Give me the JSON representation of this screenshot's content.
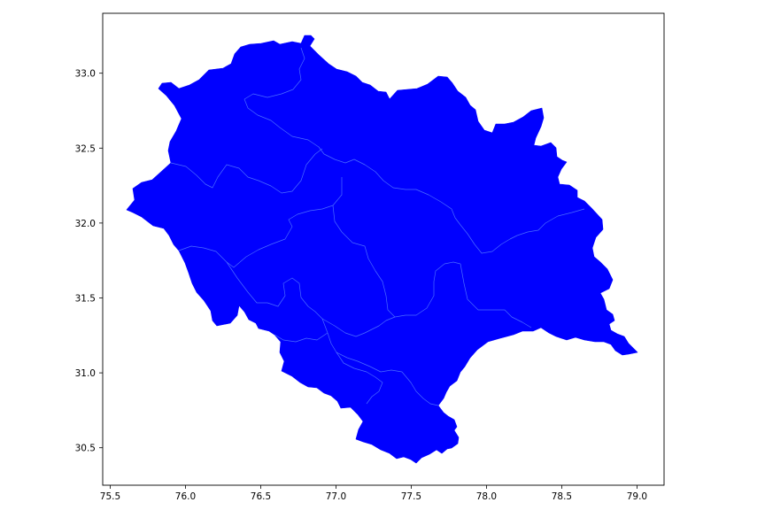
{
  "chart_data": {
    "type": "map",
    "title": "",
    "xlabel": "",
    "ylabel": "",
    "xlim": [
      75.45,
      79.18
    ],
    "ylim": [
      30.25,
      33.4
    ],
    "xticks": [
      "75.5",
      "76.0",
      "76.5",
      "77.0",
      "77.5",
      "78.0",
      "78.5",
      "79.0"
    ],
    "yticks": [
      "30.5",
      "31.0",
      "31.5",
      "32.0",
      "32.5",
      "33.0"
    ],
    "grid": false,
    "fill_color": "#0000ff",
    "boundary_color": "#4a6cff",
    "axis_color": "#000000",
    "background": "#ffffff"
  }
}
